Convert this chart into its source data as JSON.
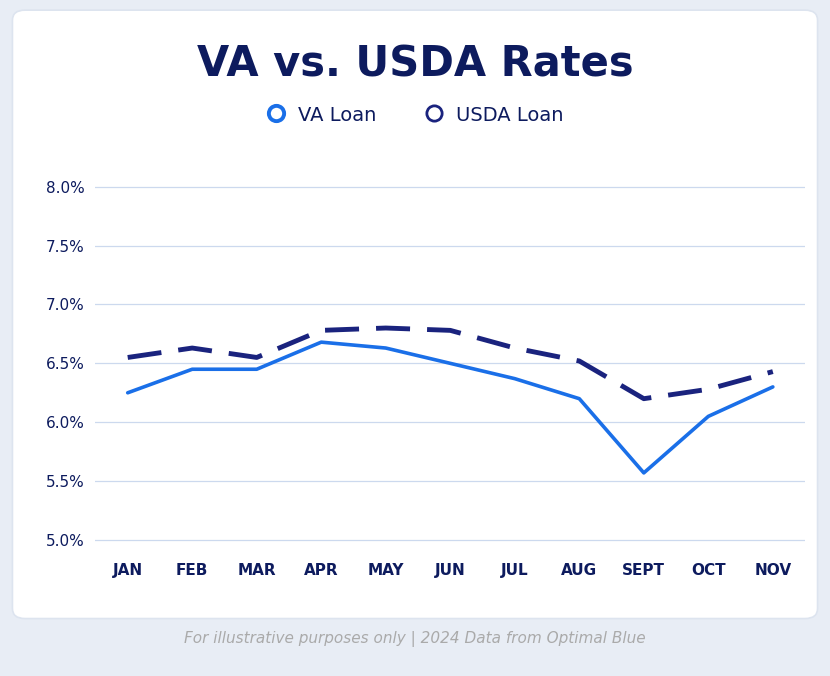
{
  "months": [
    "JAN",
    "FEB",
    "MAR",
    "APR",
    "MAY",
    "JUN",
    "JUL",
    "AUG",
    "SEPT",
    "OCT",
    "NOV"
  ],
  "va_loan": [
    6.25,
    6.45,
    6.45,
    6.68,
    6.63,
    6.5,
    6.37,
    6.2,
    5.57,
    6.05,
    6.3
  ],
  "usda_loan": [
    6.55,
    6.63,
    6.55,
    6.78,
    6.8,
    6.78,
    6.63,
    6.52,
    6.2,
    6.28,
    6.43
  ],
  "va_color": "#1a6fe8",
  "usda_color": "#1a237e",
  "outer_bg": "#e8edf5",
  "card_bg": "#ffffff",
  "card_edge": "#dde4ef",
  "title": "VA vs. USDA Rates",
  "title_color": "#0d1b5e",
  "legend_va": "VA Loan",
  "legend_usda": "USDA Loan",
  "legend_color": "#0d1b5e",
  "ylabel_ticks": [
    5.0,
    5.5,
    6.0,
    6.5,
    7.0,
    7.5,
    8.0
  ],
  "ylim": [
    4.85,
    8.15
  ],
  "footnote": "For illustrative purposes only | 2024 Data from Optimal Blue",
  "footnote_color": "#aaaaaa",
  "grid_color": "#ccd9ee",
  "tick_color": "#0d1b5e",
  "title_fontsize": 30,
  "legend_fontsize": 14,
  "tick_fontsize": 11,
  "footnote_fontsize": 11
}
